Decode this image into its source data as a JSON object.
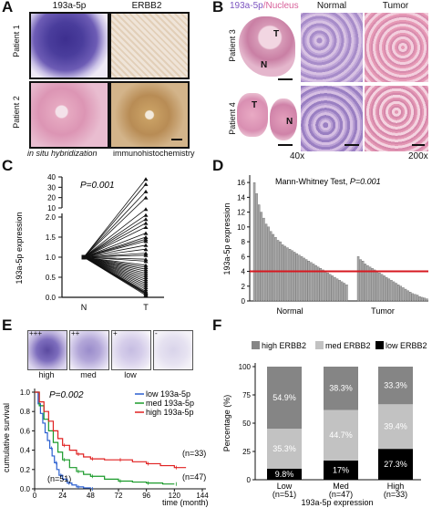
{
  "colors": {
    "ish_purple": "#5a4ca0",
    "he_pink": "#e9b7c7",
    "ihc_brown": "#c89a60",
    "red_line": "#d71920",
    "bar_grey": "#9a9a9a"
  },
  "panelA": {
    "label": "A",
    "col_titles": [
      "193a-5p",
      "ERBB2"
    ],
    "row_titles": [
      "Patient 1",
      "Patient 2"
    ],
    "caption_left": "in situ hybridization",
    "caption_right": "immunohistochemistry"
  },
  "panelB": {
    "label": "B",
    "col_title_1a": "193a-5p",
    "col_title_1b": "/Nucleus",
    "col_titles": [
      "Normal",
      "Tumor"
    ],
    "row_titles": [
      "Patient 3",
      "Patient 4"
    ],
    "tissue_labels": [
      "T",
      "N",
      "T",
      "N"
    ],
    "mag_left": "40x",
    "mag_right": "200x"
  },
  "panelC": {
    "label": "C",
    "p_value": "P=0.001",
    "ylabel": "193a-5p expression",
    "yticks": [
      "0.0",
      "0.5",
      "1.0",
      "1.5",
      "2.0",
      "10",
      "20",
      "30",
      "40"
    ],
    "xticks": [
      "N",
      "T"
    ],
    "chart_data": {
      "type": "line",
      "xlabel": "",
      "ylabel": "193a-5p expression",
      "categories": [
        "N",
        "T"
      ],
      "pairs_T": [
        2.2,
        2.05,
        1.95,
        1.85,
        1.75,
        1.6,
        1.5,
        1.45,
        1.4,
        1.3,
        1.2,
        1.1,
        1.05,
        0.95,
        0.9,
        0.8,
        0.75,
        0.7,
        0.65,
        0.6,
        0.55,
        0.5,
        0.45,
        0.4,
        0.35,
        0.3,
        0.25,
        0.2,
        0.15,
        0.12,
        0.1,
        0.08,
        0.05
      ],
      "pairs_T_break": [
        38,
        33,
        26,
        20
      ],
      "N_value": 1.0
    }
  },
  "panelD": {
    "label": "D",
    "test_text": "Mann-Whitney Test, ",
    "p_value": "P=0.001",
    "ylabel": "193a-5p expression",
    "yticks": [
      "0",
      "2",
      "4",
      "6",
      "8",
      "10",
      "12",
      "14",
      "16"
    ],
    "xticks": [
      "Normal",
      "Tumor"
    ],
    "chart_data": {
      "type": "bar",
      "ylim": [
        0,
        17
      ],
      "threshold": 4,
      "series": [
        {
          "name": "Normal",
          "values": [
            16,
            14.5,
            13,
            12,
            11.2,
            10.4,
            10,
            9.4,
            9,
            8.6,
            8.2,
            8,
            7.6,
            7.4,
            7.2,
            7,
            6.8,
            6.6,
            6.4,
            6.2,
            6,
            5.8,
            5.6,
            5.4,
            5.2,
            5,
            4.8,
            4.6,
            4.4,
            4.2,
            4,
            3.8,
            3.6,
            3.4,
            3.2,
            3,
            2.8,
            2.6,
            2.4,
            2.2
          ]
        },
        {
          "name": "Tumor",
          "values": [
            6,
            5.6,
            5.4,
            5,
            4.8,
            4.6,
            4.4,
            4.2,
            4,
            3.8,
            3.6,
            3.4,
            3.2,
            3,
            2.8,
            2.6,
            2.4,
            2.2,
            2,
            1.8,
            1.6,
            1.4,
            1.2,
            1,
            0.9,
            0.8,
            0.6,
            0.5,
            0.4,
            0.3
          ]
        }
      ]
    }
  },
  "panelE": {
    "label": "E",
    "thumb_scores": [
      "+++",
      "++",
      "+",
      "-"
    ],
    "thumb_labels": [
      "high",
      "med",
      "low",
      ""
    ],
    "p_value": "P=0.002",
    "ylabel": "cumulative survival",
    "xlabel": "time (month)",
    "yticks": [
      "0.0",
      "0.2",
      "0.4",
      "0.6",
      "0.8",
      "1.0"
    ],
    "xticks": [
      "0",
      "24",
      "48",
      "72",
      "96",
      "120",
      "144"
    ],
    "legend": [
      "low 193a-5p",
      "med 193a-5p",
      "high 193a-5p"
    ],
    "n_labels": [
      "(n=51)",
      "(n=47)",
      "(n=33)"
    ],
    "chart_data": {
      "type": "line",
      "xlim": [
        0,
        144
      ],
      "ylim": [
        0,
        1
      ],
      "series": [
        {
          "name": "low 193a-5p",
          "color": "#2a5fd0",
          "x": [
            0,
            3,
            5,
            7,
            9,
            11,
            13,
            15,
            17,
            19,
            21,
            24,
            28,
            32,
            36,
            42,
            48
          ],
          "y": [
            1,
            0.88,
            0.78,
            0.68,
            0.58,
            0.5,
            0.42,
            0.34,
            0.27,
            0.2,
            0.14,
            0.1,
            0.06,
            0.04,
            0.02,
            0.01,
            0
          ]
        },
        {
          "name": "med 193a-5p",
          "color": "#1a9a2a",
          "x": [
            0,
            4,
            8,
            12,
            16,
            20,
            24,
            30,
            36,
            42,
            48,
            60,
            72,
            84,
            96,
            110,
            120
          ],
          "y": [
            1,
            0.86,
            0.72,
            0.6,
            0.48,
            0.38,
            0.3,
            0.22,
            0.18,
            0.15,
            0.13,
            0.1,
            0.08,
            0.07,
            0.06,
            0.05,
            0.05
          ]
        },
        {
          "name": "high 193a-5p",
          "color": "#e02020",
          "x": [
            0,
            4,
            8,
            12,
            16,
            20,
            24,
            30,
            36,
            42,
            48,
            60,
            72,
            84,
            96,
            108,
            120,
            130
          ],
          "y": [
            1,
            0.9,
            0.8,
            0.7,
            0.6,
            0.52,
            0.45,
            0.4,
            0.36,
            0.33,
            0.31,
            0.3,
            0.3,
            0.28,
            0.26,
            0.24,
            0.22,
            0.22
          ]
        }
      ]
    }
  },
  "panelF": {
    "label": "F",
    "legend": [
      "high ERBB2",
      "med ERBB2",
      "low ERBB2"
    ],
    "ylabel": "Percentage (%)",
    "xlabel": "193a-5p expression",
    "yticks": [
      "0",
      "25",
      "50",
      "75",
      "100"
    ],
    "groups": [
      {
        "name": "Low",
        "n": "(n=51)",
        "low": 9.8,
        "med": 35.3,
        "high": 54.9,
        "low_t": "9.8%",
        "med_t": "35.3%",
        "high_t": "54.9%"
      },
      {
        "name": "Med",
        "n": "(n=47)",
        "low": 17,
        "med": 44.7,
        "high": 38.3,
        "low_t": "17%",
        "med_t": "44.7%",
        "high_t": "38.3%"
      },
      {
        "name": "High",
        "n": "(n=33)",
        "low": 27.3,
        "med": 39.4,
        "high": 33.3,
        "low_t": "27.3%",
        "med_t": "39.4%",
        "high_t": "33.3%"
      }
    ],
    "chart_data": {
      "type": "bar",
      "categories": [
        "Low",
        "Med",
        "High"
      ],
      "series": [
        {
          "name": "low ERBB2",
          "values": [
            9.8,
            17,
            27.3
          ]
        },
        {
          "name": "med ERBB2",
          "values": [
            35.3,
            44.7,
            39.4
          ]
        },
        {
          "name": "high ERBB2",
          "values": [
            54.9,
            38.3,
            33.3
          ]
        }
      ],
      "ylim": [
        0,
        100
      ],
      "ylabel": "Percentage (%)",
      "xlabel": "193a-5p expression"
    }
  }
}
